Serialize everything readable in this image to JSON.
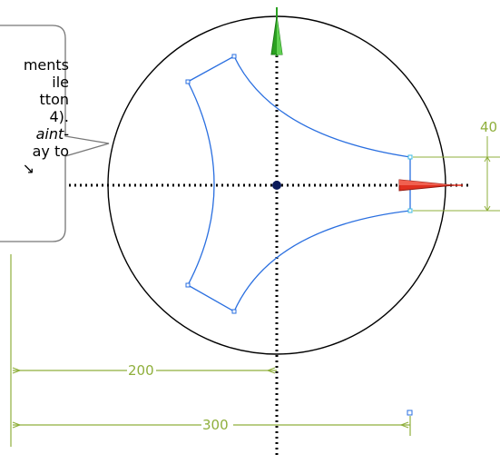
{
  "callout": {
    "line1": "ments",
    "line2": "ile",
    "line3": "tton",
    "line4": "4).",
    "line5": "aint-",
    "line6": "ay to",
    "arrow": "↘"
  },
  "dimensions": {
    "horizontal_1": "200",
    "horizontal_2": "300",
    "vertical": "40"
  },
  "colors": {
    "profile": "#2a6fe0",
    "dimension": "#8faf3c",
    "x_axis_arrow": "#e03020",
    "y_axis_arrow": "#2aa020",
    "circle": "#000000"
  }
}
